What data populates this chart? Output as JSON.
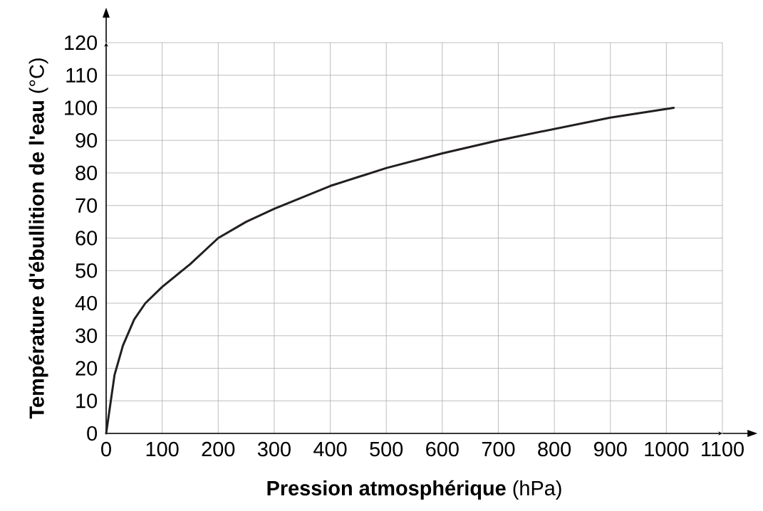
{
  "chart_data": {
    "type": "line",
    "xlabel": "**Pression atmosphérique** (hPa)",
    "ylabel": "**Température d'ébullition de l'eau** (°C)",
    "x": [
      0,
      5,
      15,
      30,
      50,
      70,
      100,
      150,
      200,
      250,
      300,
      400,
      500,
      600,
      700,
      800,
      900,
      1013
    ],
    "series": [
      {
        "color": "#231f20",
        "values": [
          0,
          6,
          18,
          27,
          35,
          40,
          45,
          52,
          60,
          65,
          69,
          76,
          81.5,
          86,
          90,
          93.5,
          97,
          100
        ]
      }
    ],
    "xlim": [
      0,
      1100
    ],
    "ylim": [
      0,
      120
    ],
    "xticks": [
      0,
      100,
      200,
      300,
      400,
      500,
      600,
      700,
      800,
      900,
      1000,
      1100
    ],
    "yticks": [
      0,
      10,
      20,
      30,
      40,
      50,
      60,
      70,
      80,
      90,
      100,
      110,
      120
    ],
    "grid": true,
    "marker": "none",
    "line_style": "solid"
  }
}
